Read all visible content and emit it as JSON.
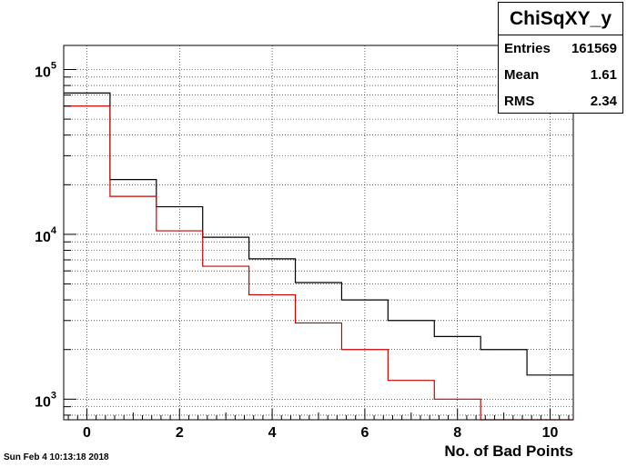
{
  "stats": {
    "title": "ChiSqXY_y",
    "entries_label": "Entries",
    "entries_value": "161569",
    "mean_label": "Mean",
    "mean_value": "1.61",
    "rms_label": "RMS",
    "rms_value": "2.34"
  },
  "timestamp": "Sun Feb  4 10:13:18 2018",
  "colors": {
    "series_1": "#000000",
    "series_2": "#cc0000"
  },
  "chart_data": {
    "type": "bar",
    "style": "step-histogram",
    "xlabel": "No. of Bad Points",
    "ylabel": "",
    "xlim": [
      -0.5,
      10.5
    ],
    "ylim": [
      750,
      140000
    ],
    "yscale": "log",
    "grid": true,
    "x_ticks": [
      0,
      2,
      4,
      6,
      8,
      10
    ],
    "y_ticks": [
      {
        "value": 1000,
        "base": "10",
        "exp": "3"
      },
      {
        "value": 10000,
        "base": "10",
        "exp": "4"
      },
      {
        "value": 100000,
        "base": "10",
        "exp": "5"
      }
    ],
    "bin_centers": [
      0,
      1,
      2,
      3,
      4,
      5,
      6,
      7,
      8,
      9,
      10
    ],
    "series": [
      {
        "color": "#000000",
        "values": [
          72000,
          21500,
          14700,
          9600,
          7100,
          5100,
          4000,
          3000,
          2400,
          2000,
          1400
        ]
      },
      {
        "color": "#cc0000",
        "values": [
          60000,
          17000,
          10500,
          6400,
          4300,
          2900,
          2000,
          1300,
          1000,
          720,
          720
        ]
      }
    ]
  }
}
